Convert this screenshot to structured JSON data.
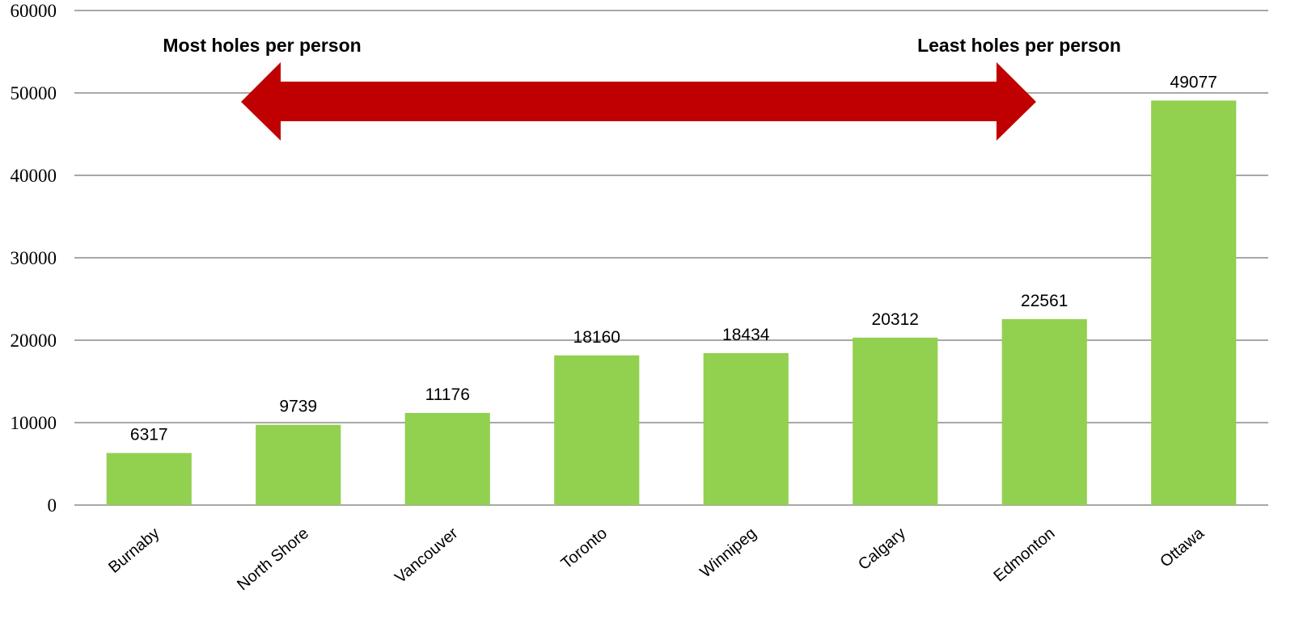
{
  "chart_data": {
    "type": "bar",
    "categories": [
      "Burnaby",
      "North Shore",
      "Vancouver",
      "Toronto",
      "Winnipeg",
      "Calgary",
      "Edmonton",
      "Ottawa"
    ],
    "values": [
      6317,
      9739,
      11176,
      18160,
      18434,
      20312,
      22561,
      49077
    ],
    "ylim": [
      0,
      60000
    ],
    "yticks": [
      "0",
      "10000",
      "20000",
      "30000",
      "40000",
      "50000",
      "60000"
    ],
    "grid": true,
    "bar_color": "#92d050",
    "annotations": {
      "left_label": "Most holes per person",
      "right_label": "Least holes per person",
      "arrow_color": "#c00000"
    }
  }
}
